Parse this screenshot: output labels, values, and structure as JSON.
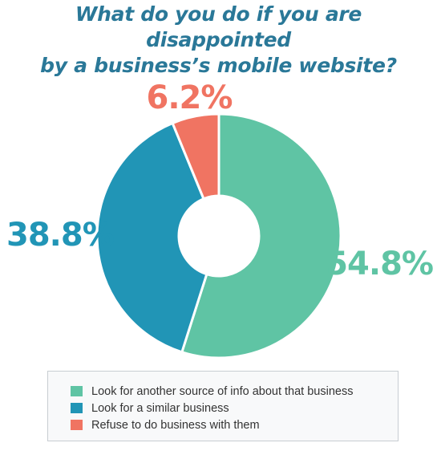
{
  "chart_data": {
    "type": "pie",
    "title_lines": [
      "What do you do if you are disappointed",
      "by a business’s mobile website?"
    ],
    "slices": [
      {
        "label": "Look for another source of info about that business",
        "value": 54.8,
        "display": "54.8%",
        "color": "#5fc4a4"
      },
      {
        "label": "Look for a similar business",
        "value": 38.8,
        "display": "38.8%",
        "color": "#2195b6"
      },
      {
        "label": "Refuse to do business with them",
        "value": 6.2,
        "display": "6.2%",
        "color": "#f07462"
      }
    ],
    "style": "donut",
    "legend_position": "bottom"
  }
}
